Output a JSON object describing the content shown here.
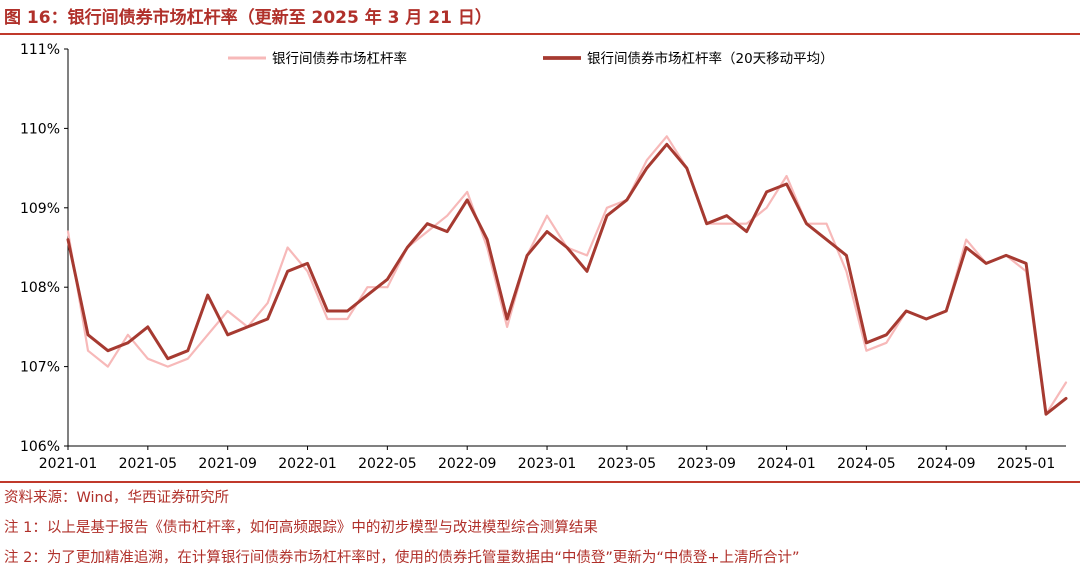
{
  "figure": {
    "title": "图 16：银行间债券市场杠杆率（更新至 2025 年 3 月 21 日）"
  },
  "notes": {
    "source": "资料来源：Wind，华西证券研究所",
    "note1": "注 1：以上是基于报告《债市杠杆率，如何高频跟踪》中的初步模型与改进模型综合测算结果",
    "note2": "注 2：为了更加精准追溯，在计算银行间债券市场杠杆率时，使用的债券托管量数据由“中债登”更新为“中债登+上清所合计”"
  },
  "colors": {
    "daily": "#f7b9b9",
    "ma20": "#a63a31",
    "accent": "#c0392b"
  },
  "chart_data": {
    "type": "line",
    "title": "",
    "xlabel": "",
    "ylabel": "",
    "ylim": [
      106,
      111
    ],
    "y_ticks": [
      "106%",
      "107%",
      "108%",
      "109%",
      "110%",
      "111%"
    ],
    "x_ticks": [
      "2021-01",
      "2021-05",
      "2021-09",
      "2022-01",
      "2022-05",
      "2022-09",
      "2023-01",
      "2023-05",
      "2023-09",
      "2024-01",
      "2024-05",
      "2024-09",
      "2025-01"
    ],
    "x": [
      "2021-01",
      "2021-02",
      "2021-03",
      "2021-04",
      "2021-05",
      "2021-06",
      "2021-07",
      "2021-08",
      "2021-09",
      "2021-10",
      "2021-11",
      "2021-12",
      "2022-01",
      "2022-02",
      "2022-03",
      "2022-04",
      "2022-05",
      "2022-06",
      "2022-07",
      "2022-08",
      "2022-09",
      "2022-10",
      "2022-11",
      "2022-12",
      "2023-01",
      "2023-02",
      "2023-03",
      "2023-04",
      "2023-05",
      "2023-06",
      "2023-07",
      "2023-08",
      "2023-09",
      "2023-10",
      "2023-11",
      "2023-12",
      "2024-01",
      "2024-02",
      "2024-03",
      "2024-04",
      "2024-05",
      "2024-06",
      "2024-07",
      "2024-08",
      "2024-09",
      "2024-10",
      "2024-11",
      "2024-12",
      "2025-01",
      "2025-02",
      "2025-03"
    ],
    "series": [
      {
        "name": "银行间债券市场杠杆率",
        "legend": "top-center",
        "values": [
          108.7,
          107.2,
          107.0,
          107.4,
          107.1,
          107.0,
          107.1,
          107.4,
          107.7,
          107.5,
          107.8,
          108.5,
          108.2,
          107.6,
          107.6,
          108.0,
          108.0,
          108.5,
          108.7,
          108.9,
          109.2,
          108.5,
          107.5,
          108.4,
          108.9,
          108.5,
          108.4,
          109.0,
          109.1,
          109.6,
          109.9,
          109.5,
          108.8,
          108.8,
          108.8,
          109.0,
          109.4,
          108.8,
          108.8,
          108.2,
          107.2,
          107.3,
          107.7,
          107.6,
          107.7,
          108.6,
          108.3,
          108.4,
          108.2,
          106.4,
          106.8
        ]
      },
      {
        "name": "银行间债券市场杠杆率（20天移动平均）",
        "legend": "top-center",
        "values": [
          108.6,
          107.4,
          107.2,
          107.3,
          107.5,
          107.1,
          107.2,
          107.9,
          107.4,
          107.5,
          107.6,
          108.2,
          108.3,
          107.7,
          107.7,
          107.9,
          108.1,
          108.5,
          108.8,
          108.7,
          109.1,
          108.6,
          107.6,
          108.4,
          108.7,
          108.5,
          108.2,
          108.9,
          109.1,
          109.5,
          109.8,
          109.5,
          108.8,
          108.9,
          108.7,
          109.2,
          109.3,
          108.8,
          108.6,
          108.4,
          107.3,
          107.4,
          107.7,
          107.6,
          107.7,
          108.5,
          108.3,
          108.4,
          108.3,
          106.4,
          106.6
        ]
      }
    ]
  }
}
